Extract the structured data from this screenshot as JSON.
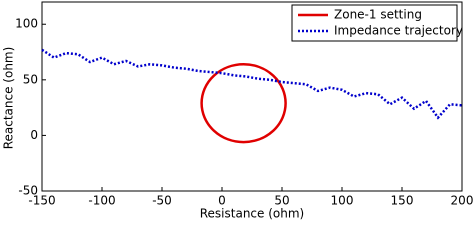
{
  "chart_data": {
    "type": "line",
    "xlabel": "Resistance (ohm)",
    "ylabel": "Reactance (ohm)",
    "xlim": [
      -150,
      200
    ],
    "ylim": [
      -50,
      120
    ],
    "xticks": [
      -150,
      -100,
      -50,
      0,
      50,
      100,
      150,
      200
    ],
    "yticks": [
      -50,
      0,
      50,
      100
    ],
    "legend": "upper-right",
    "series": [
      {
        "name": "Zone-1 setting",
        "color": "#e00000",
        "kind": "circle",
        "center": [
          18,
          29
        ],
        "radius": 35
      },
      {
        "name": "Impedance trajectory",
        "color": "#0000cc",
        "kind": "dotted",
        "x": [
          -150,
          -140,
          -130,
          -120,
          -110,
          -100,
          -90,
          -80,
          -70,
          -60,
          -50,
          -40,
          -30,
          -20,
          -10,
          0,
          10,
          20,
          30,
          40,
          50,
          60,
          70,
          80,
          90,
          100,
          110,
          120,
          130,
          140,
          150,
          160,
          170,
          180,
          190,
          200
        ],
        "values": [
          77,
          70,
          74,
          73,
          66,
          70,
          64,
          67,
          62,
          64,
          63,
          61,
          60,
          58,
          57,
          56,
          54,
          53,
          51,
          50,
          48,
          47,
          46,
          40,
          43,
          41,
          35,
          38,
          37,
          28,
          34,
          24,
          31,
          16,
          28,
          27
        ]
      }
    ]
  }
}
